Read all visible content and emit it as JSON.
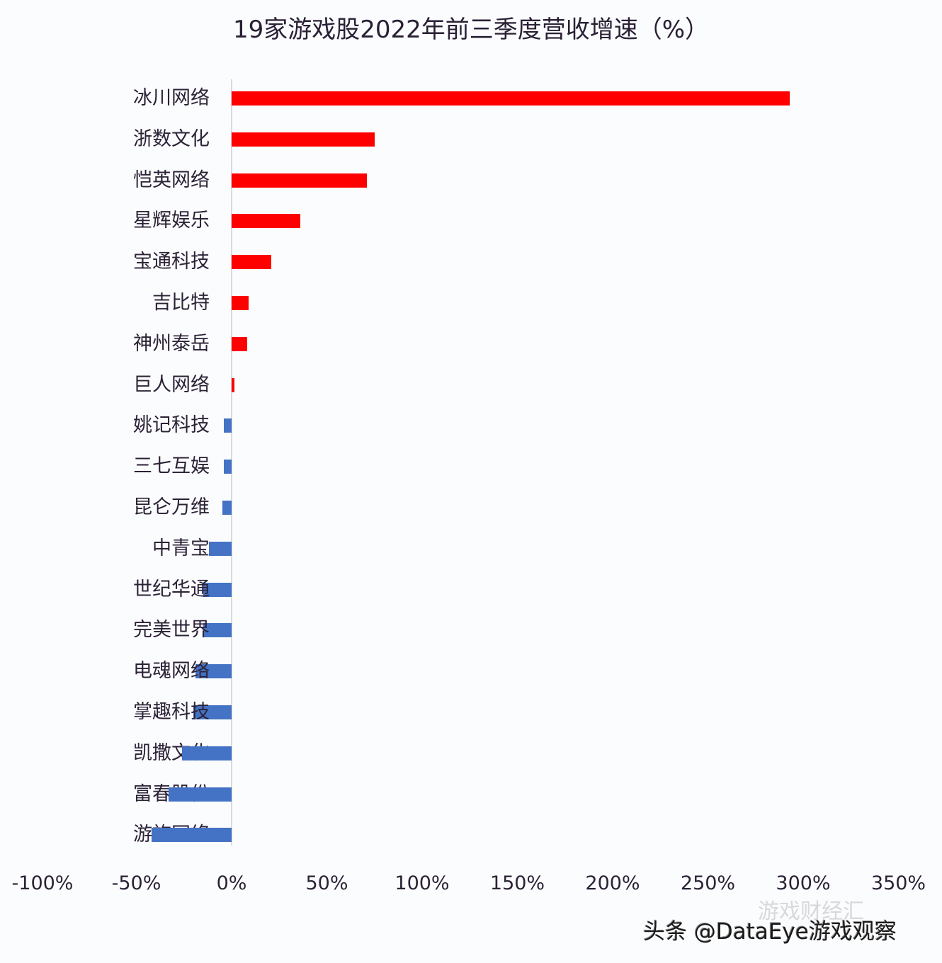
{
  "chart_data": {
    "type": "bar",
    "orientation": "horizontal",
    "title": "19家游戏股2022年前三季度营收增速（%）",
    "xlabel": "",
    "ylabel": "",
    "xlim": [
      -100,
      350
    ],
    "x_ticks": [
      "-100%",
      "-50%",
      "0%",
      "50%",
      "100%",
      "150%",
      "200%",
      "250%",
      "300%",
      "350%"
    ],
    "grid": false,
    "legend": null,
    "colors": {
      "positive": "#FF0000",
      "negative": "#4472C4"
    },
    "categories": [
      "冰川网络",
      "浙数文化",
      "恺英网络",
      "星辉娱乐",
      "宝通科技",
      "吉比特",
      "神州泰岳",
      "巨人网络",
      "姚记科技",
      "三七互娱",
      "昆仑万维",
      "中青宝",
      "世纪华通",
      "完美世界",
      "电魂网络",
      "掌趣科技",
      "凯撒文化",
      "富春股份",
      "游族网络"
    ],
    "values": [
      293,
      75,
      71,
      36,
      21,
      9,
      8,
      1.5,
      -4,
      -4,
      -5,
      -12,
      -15,
      -15,
      -19,
      -20,
      -26,
      -33,
      -42
    ]
  },
  "title": "19家游戏股2022年前三季度营收增速（%）",
  "watermark": {
    "main": "头条 @DataEye游戏观察",
    "faint": "游戏财经汇"
  }
}
